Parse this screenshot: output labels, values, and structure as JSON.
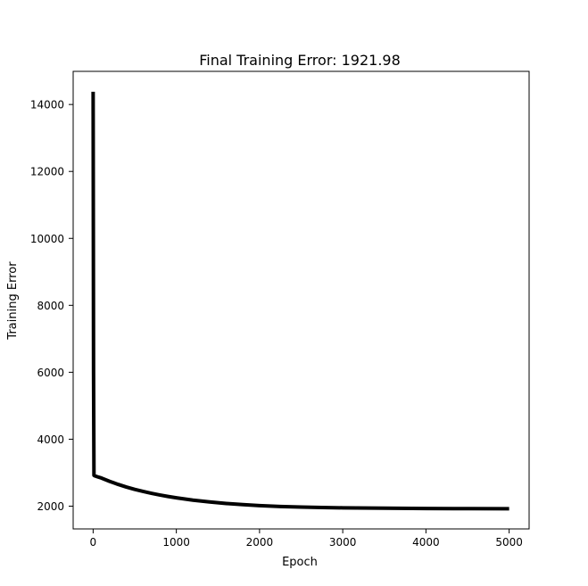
{
  "chart_data": {
    "type": "line",
    "title": "Final Training Error: 1921.98",
    "xlabel": "Epoch",
    "ylabel": "Training Error",
    "xlim": [
      -240,
      5240
    ],
    "ylim": [
      1320,
      14990
    ],
    "xticks": [
      0,
      1000,
      2000,
      3000,
      4000,
      5000
    ],
    "yticks": [
      2000,
      4000,
      6000,
      8000,
      10000,
      12000,
      14000
    ],
    "grid": false,
    "legend": "none",
    "series": [
      {
        "name": "Training Error",
        "color": "#000000",
        "x": [
          0,
          5,
          10,
          20,
          50,
          100,
          200,
          300,
          400,
          500,
          600,
          700,
          800,
          900,
          1000,
          1200,
          1400,
          1600,
          1800,
          2000,
          2250,
          2500,
          2750,
          3000,
          3500,
          4000,
          4500,
          5000
        ],
        "y": [
          14380,
          6000,
          2920,
          2905,
          2880,
          2840,
          2740,
          2650,
          2570,
          2500,
          2440,
          2385,
          2335,
          2290,
          2250,
          2180,
          2125,
          2080,
          2045,
          2015,
          1990,
          1972,
          1960,
          1950,
          1938,
          1930,
          1925,
          1922
        ]
      }
    ]
  }
}
